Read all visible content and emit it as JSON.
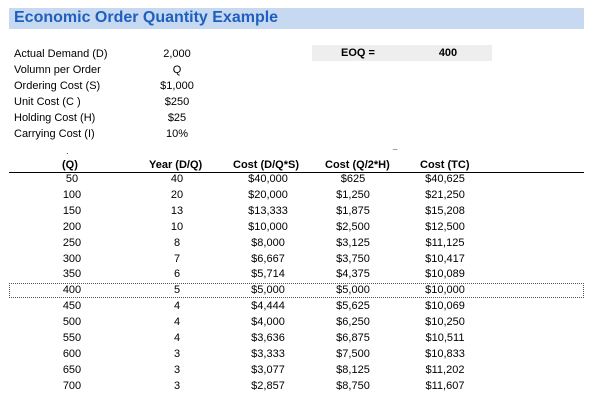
{
  "title": "Economic Order Quantity Example",
  "params": [
    {
      "label": "Actual Demand (D)",
      "value": "2,000"
    },
    {
      "label": "Volumn per Order",
      "value": "Q"
    },
    {
      "label": "Ordering Cost (S)",
      "value": "$1,000"
    },
    {
      "label": "Unit Cost (C )",
      "value": "$250"
    },
    {
      "label": "Holding Cost (H)",
      "value": "$25"
    },
    {
      "label": "Carrying Cost (I)",
      "value": "10%"
    }
  ],
  "eoq": {
    "label": "EOQ =",
    "value": "400"
  },
  "table": {
    "headers": {
      "q": "(Q)",
      "year": "Year (D/Q)",
      "cost_d": "Cost (D/Q*S)",
      "cost_q": "Cost (Q/2*H)",
      "total": "Cost (TC)"
    },
    "rows": [
      {
        "q": "50",
        "year": "40",
        "cost_d": "$40,000",
        "cost_q": "$625",
        "total": "$40,625"
      },
      {
        "q": "100",
        "year": "20",
        "cost_d": "$20,000",
        "cost_q": "$1,250",
        "total": "$21,250"
      },
      {
        "q": "150",
        "year": "13",
        "cost_d": "$13,333",
        "cost_q": "$1,875",
        "total": "$15,208"
      },
      {
        "q": "200",
        "year": "10",
        "cost_d": "$10,000",
        "cost_q": "$2,500",
        "total": "$12,500"
      },
      {
        "q": "250",
        "year": "8",
        "cost_d": "$8,000",
        "cost_q": "$3,125",
        "total": "$11,125"
      },
      {
        "q": "300",
        "year": "7",
        "cost_d": "$6,667",
        "cost_q": "$3,750",
        "total": "$10,417"
      },
      {
        "q": "350",
        "year": "6",
        "cost_d": "$5,714",
        "cost_q": "$4,375",
        "total": "$10,089"
      },
      {
        "q": "400",
        "year": "5",
        "cost_d": "$5,000",
        "cost_q": "$5,000",
        "total": "$10,000"
      },
      {
        "q": "450",
        "year": "4",
        "cost_d": "$4,444",
        "cost_q": "$5,625",
        "total": "$10,069"
      },
      {
        "q": "500",
        "year": "4",
        "cost_d": "$4,000",
        "cost_q": "$6,250",
        "total": "$10,250"
      },
      {
        "q": "550",
        "year": "4",
        "cost_d": "$3,636",
        "cost_q": "$6,875",
        "total": "$10,511"
      },
      {
        "q": "600",
        "year": "3",
        "cost_d": "$3,333",
        "cost_q": "$7,500",
        "total": "$10,833"
      },
      {
        "q": "650",
        "year": "3",
        "cost_d": "$3,077",
        "cost_q": "$8,125",
        "total": "$11,202"
      },
      {
        "q": "700",
        "year": "3",
        "cost_d": "$2,857",
        "cost_q": "$8,750",
        "total": "$11,607"
      }
    ],
    "highlight_row_index": 7
  },
  "colors": {
    "title_bg": "#c6d9f1",
    "title_text": "#1f5fbf",
    "eoq_bg": "#eeeeee"
  }
}
